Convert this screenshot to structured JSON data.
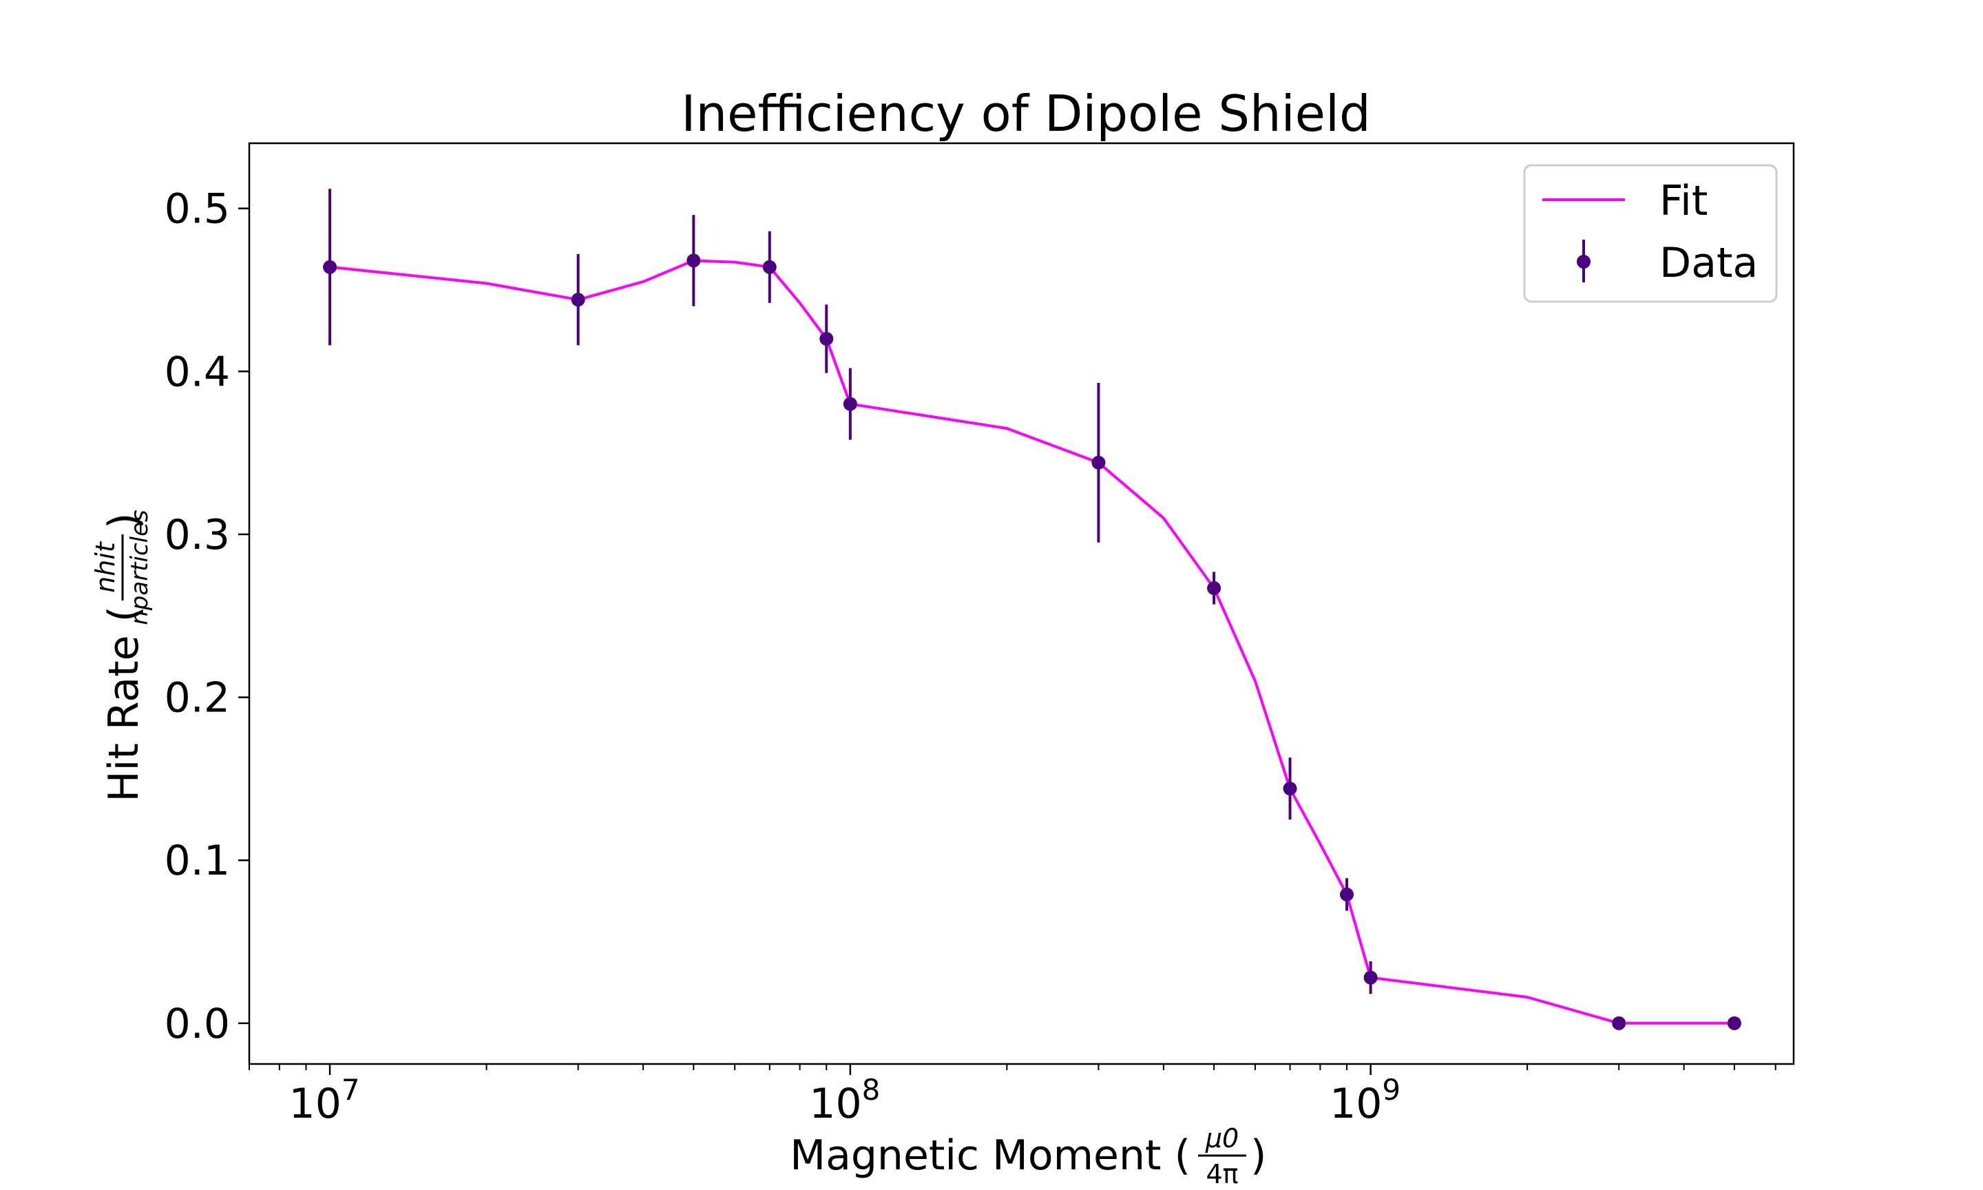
{
  "chart_data": {
    "type": "scatter",
    "title": "Inefficiency of Dipole Shield",
    "xlabel_main": "Magnetic Moment (",
    "xlabel_frac_num": "μ0",
    "xlabel_frac_den": "4π",
    "xlabel_close": ")",
    "ylabel_main": "Hit Rate (",
    "ylabel_frac_num": "nhit",
    "ylabel_frac_den": "nparticles",
    "ylabel_close": ")",
    "xscale": "log",
    "xlim": [
      7000000,
      6500000000
    ],
    "ylim": [
      -0.025,
      0.54
    ],
    "x_tick_labels": [
      {
        "base": "10",
        "exp": "7",
        "value": 10000000
      },
      {
        "base": "10",
        "exp": "8",
        "value": 100000000
      },
      {
        "base": "10",
        "exp": "9",
        "value": 1000000000
      }
    ],
    "y_ticks": [
      0.0,
      0.1,
      0.2,
      0.3,
      0.4,
      0.5
    ],
    "y_tick_labels": [
      "0.0",
      "0.1",
      "0.2",
      "0.3",
      "0.4",
      "0.5"
    ],
    "grid": false,
    "legend_position": "top-right",
    "series": [
      {
        "name": "Fit",
        "kind": "line",
        "color": "#ff00ff",
        "x": [
          10000000,
          20000000,
          30000000,
          40000000,
          50000000,
          60000000,
          70000000,
          80000000,
          90000000,
          100000000,
          200000000,
          300000000,
          400000000,
          500000000,
          600000000,
          700000000,
          800000000,
          900000000,
          1000000000,
          2000000000,
          3000000000,
          4000000000,
          5000000000
        ],
        "y": [
          0.464,
          0.454,
          0.444,
          0.455,
          0.468,
          0.467,
          0.464,
          0.442,
          0.42,
          0.38,
          0.365,
          0.344,
          0.31,
          0.267,
          0.21,
          0.144,
          0.11,
          0.079,
          0.028,
          0.016,
          0.0,
          0.0,
          0.0
        ]
      },
      {
        "name": "Data",
        "kind": "errorbar",
        "color": "#4b0082",
        "x": [
          10000000,
          30000000,
          50000000,
          70000000,
          90000000,
          100000000,
          300000000,
          500000000,
          700000000,
          900000000,
          1000000000,
          3000000000,
          5000000000
        ],
        "y": [
          0.464,
          0.444,
          0.468,
          0.464,
          0.42,
          0.38,
          0.344,
          0.267,
          0.144,
          0.079,
          0.028,
          0.0,
          0.0
        ],
        "yerr": [
          0.048,
          0.028,
          0.028,
          0.022,
          0.021,
          0.022,
          0.049,
          0.01,
          0.019,
          0.01,
          0.01,
          0.0,
          0.0
        ]
      }
    ]
  }
}
